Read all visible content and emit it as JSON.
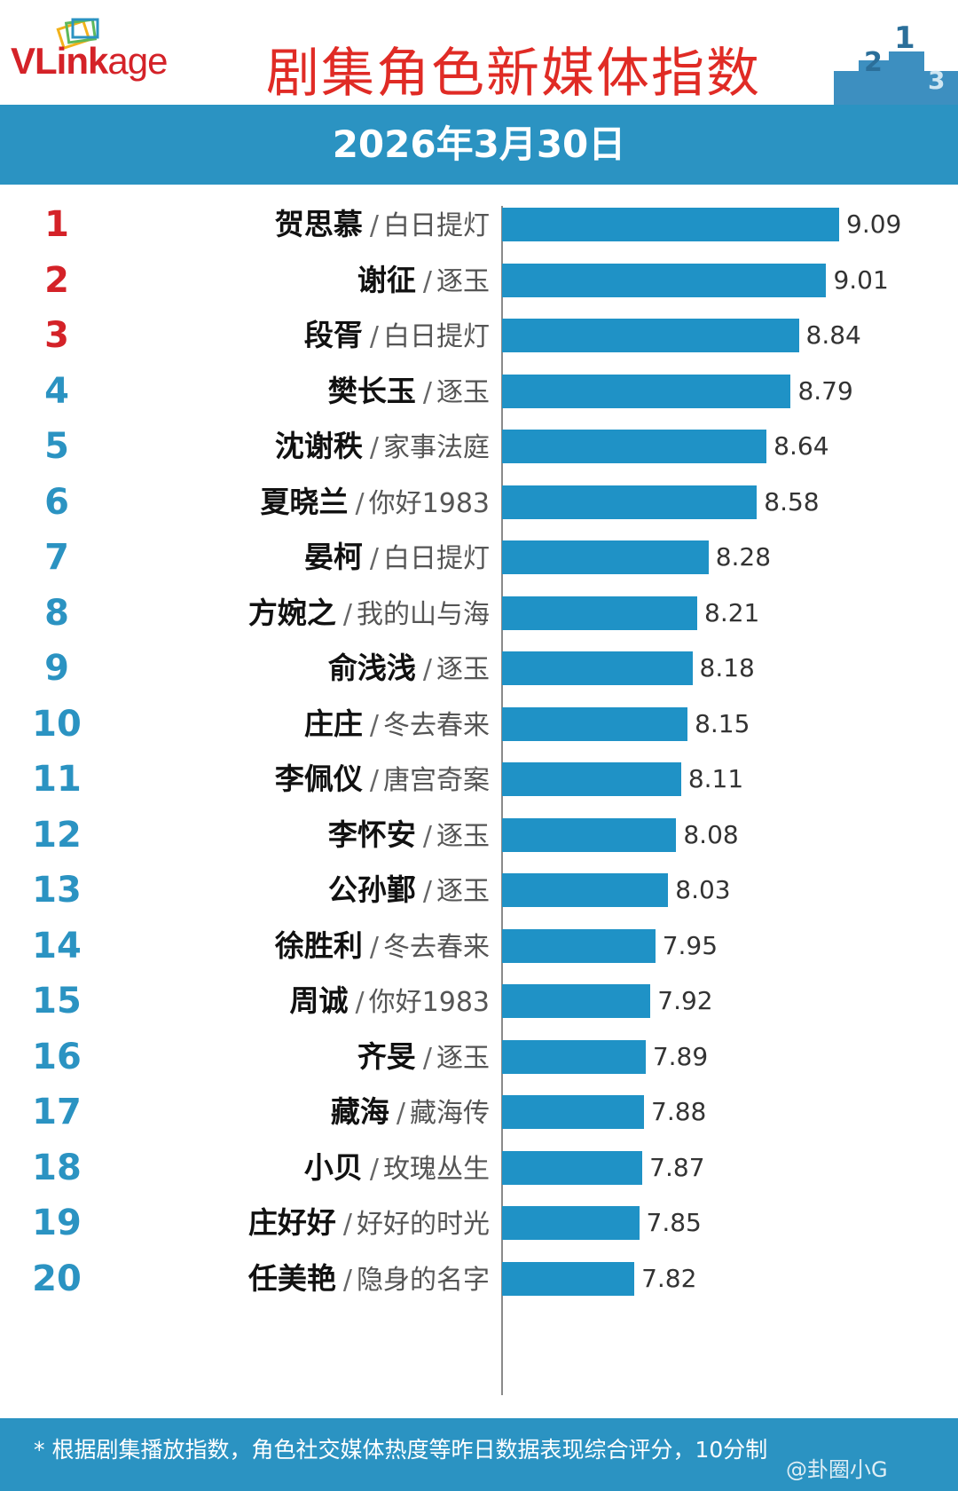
{
  "header": {
    "logo_prefix": "VLink",
    "logo_suffix": "age",
    "title": "剧集角色新媒体指数",
    "podium_numbers": [
      "2",
      "1",
      "3"
    ]
  },
  "date": "2026年3月30日",
  "colors": {
    "accent": "#2b93c2",
    "bar": "#1f92c6",
    "title_red": "#e02b25",
    "rank_top3": "#d42228",
    "rank_rest": "#2b93c2"
  },
  "chart_data": {
    "type": "bar",
    "orientation": "horizontal",
    "title": "剧集角色新媒体指数",
    "subtitle": "2026年3月30日",
    "xlim": [
      7.0,
      9.5
    ],
    "separator": "/",
    "rows": [
      {
        "rank": "1",
        "character": "贺思慕",
        "show": "白日提灯",
        "value": 9.09,
        "label": "9.09"
      },
      {
        "rank": "2",
        "character": "谢征",
        "show": "逐玉",
        "value": 9.01,
        "label": "9.01"
      },
      {
        "rank": "3",
        "character": "段胥",
        "show": "白日提灯",
        "value": 8.84,
        "label": "8.84"
      },
      {
        "rank": "4",
        "character": "樊长玉",
        "show": "逐玉",
        "value": 8.79,
        "label": "8.79"
      },
      {
        "rank": "5",
        "character": "沈谢秩",
        "show": "家事法庭",
        "value": 8.64,
        "label": "8.64"
      },
      {
        "rank": "6",
        "character": "夏晓兰",
        "show": "你好1983",
        "value": 8.58,
        "label": "8.58"
      },
      {
        "rank": "7",
        "character": "晏柯",
        "show": "白日提灯",
        "value": 8.28,
        "label": "8.28"
      },
      {
        "rank": "8",
        "character": "方婉之",
        "show": "我的山与海",
        "value": 8.21,
        "label": "8.21"
      },
      {
        "rank": "9",
        "character": "俞浅浅",
        "show": "逐玉",
        "value": 8.18,
        "label": "8.18"
      },
      {
        "rank": "10",
        "character": "庄庄",
        "show": "冬去春来",
        "value": 8.15,
        "label": "8.15"
      },
      {
        "rank": "11",
        "character": "李佩仪",
        "show": "唐宫奇案",
        "value": 8.11,
        "label": "8.11"
      },
      {
        "rank": "12",
        "character": "李怀安",
        "show": "逐玉",
        "value": 8.08,
        "label": "8.08"
      },
      {
        "rank": "13",
        "character": "公孙鄞",
        "show": "逐玉",
        "value": 8.03,
        "label": "8.03"
      },
      {
        "rank": "14",
        "character": "徐胜利",
        "show": "冬去春来",
        "value": 7.95,
        "label": "7.95"
      },
      {
        "rank": "15",
        "character": "周诚",
        "show": "你好1983",
        "value": 7.92,
        "label": "7.92"
      },
      {
        "rank": "16",
        "character": "齐旻",
        "show": "逐玉",
        "value": 7.89,
        "label": "7.89"
      },
      {
        "rank": "17",
        "character": "藏海",
        "show": "藏海传",
        "value": 7.88,
        "label": "7.88"
      },
      {
        "rank": "18",
        "character": "小贝",
        "show": "玫瑰丛生",
        "value": 7.87,
        "label": "7.87"
      },
      {
        "rank": "19",
        "character": "庄好好",
        "show": "好好的时光",
        "value": 7.85,
        "label": "7.85"
      },
      {
        "rank": "20",
        "character": "任美艳",
        "show": "隐身的名字",
        "value": 7.82,
        "label": "7.82"
      }
    ]
  },
  "footer": {
    "note": "* 根据剧集播放指数，角色社交媒体热度等昨日数据表现综合评分，10分制",
    "watermark": "@卦圈小G"
  }
}
